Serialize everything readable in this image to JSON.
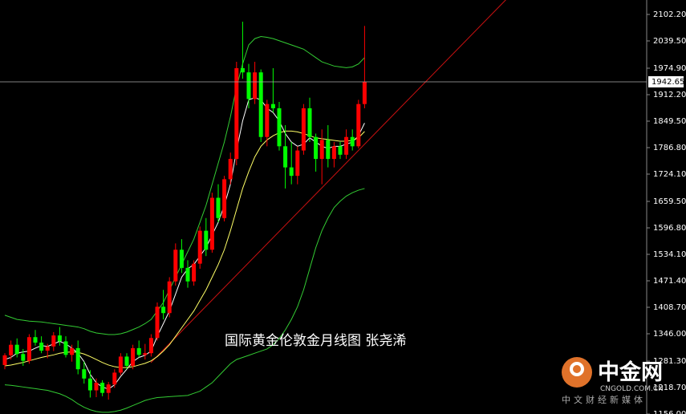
{
  "chart_data": {
    "type": "candlestick",
    "annotation": "国际黄金伦敦金月线图  张尧浠",
    "logo": {
      "name": "中金网",
      "site": "CNGOLD.COM.CN",
      "slogan": "中文财经新媒体"
    },
    "up_color": "#ff0000",
    "down_color": "#00ff00",
    "open": [
      1272,
      1295,
      1320,
      1298,
      1282,
      1338,
      1325,
      1306,
      1316,
      1342,
      1328,
      1296,
      1312,
      1262,
      1240,
      1212,
      1230,
      1206,
      1226,
      1254,
      1292,
      1270,
      1312,
      1296,
      1300,
      1336,
      1410,
      1395,
      1470,
      1545,
      1502,
      1470,
      1512,
      1590,
      1545,
      1668,
      1620,
      1712,
      1760,
      1975,
      1965,
      1902,
      1965,
      1812,
      1890,
      1880,
      1790,
      1740,
      1720,
      1780,
      1880,
      1812,
      1760,
      1805,
      1760,
      1790,
      1770,
      1812,
      1790,
      1890
    ],
    "high": [
      1300,
      1330,
      1335,
      1310,
      1345,
      1355,
      1340,
      1322,
      1350,
      1362,
      1340,
      1320,
      1330,
      1280,
      1260,
      1240,
      1236,
      1232,
      1262,
      1300,
      1300,
      1320,
      1330,
      1322,
      1345,
      1420,
      1450,
      1480,
      1560,
      1570,
      1520,
      1520,
      1600,
      1620,
      1680,
      1700,
      1720,
      1775,
      1990,
      2085,
      1985,
      1990,
      1972,
      1900,
      1975,
      1895,
      1840,
      1800,
      1790,
      1890,
      1905,
      1820,
      1830,
      1840,
      1800,
      1800,
      1830,
      1830,
      1900,
      2075
    ],
    "low": [
      1262,
      1285,
      1290,
      1270,
      1275,
      1318,
      1300,
      1288,
      1305,
      1318,
      1290,
      1280,
      1250,
      1228,
      1195,
      1196,
      1198,
      1190,
      1218,
      1248,
      1262,
      1262,
      1290,
      1285,
      1292,
      1330,
      1380,
      1385,
      1460,
      1490,
      1455,
      1460,
      1500,
      1530,
      1538,
      1610,
      1612,
      1700,
      1745,
      1950,
      1880,
      1890,
      1800,
      1790,
      1870,
      1780,
      1690,
      1700,
      1700,
      1770,
      1800,
      1730,
      1700,
      1740,
      1740,
      1760,
      1760,
      1780,
      1785,
      1880
    ],
    "close": [
      1295,
      1320,
      1298,
      1282,
      1338,
      1325,
      1306,
      1316,
      1342,
      1328,
      1296,
      1312,
      1262,
      1240,
      1212,
      1230,
      1206,
      1226,
      1254,
      1292,
      1270,
      1312,
      1296,
      1300,
      1336,
      1410,
      1395,
      1470,
      1545,
      1502,
      1470,
      1512,
      1590,
      1545,
      1668,
      1620,
      1712,
      1760,
      1975,
      1965,
      1902,
      1965,
      1812,
      1890,
      1880,
      1790,
      1740,
      1720,
      1780,
      1880,
      1812,
      1760,
      1805,
      1760,
      1790,
      1770,
      1812,
      1790,
      1890,
      1942.65
    ],
    "overlays": [
      {
        "color": "#33cc33",
        "values": [
          1390,
          1385,
          1380,
          1378,
          1376,
          1375,
          1374,
          1372,
          1370,
          1368,
          1366,
          1364,
          1362,
          1358,
          1352,
          1348,
          1346,
          1344,
          1344,
          1346,
          1350,
          1356,
          1362,
          1370,
          1380,
          1400,
          1420,
          1450,
          1480,
          1510,
          1540,
          1570,
          1610,
          1650,
          1700,
          1750,
          1800,
          1860,
          1930,
          1985,
          2030,
          2045,
          2050,
          2048,
          2045,
          2040,
          2035,
          2030,
          2025,
          2020,
          2010,
          2000,
          1990,
          1985,
          1980,
          1978,
          1976,
          1978,
          1985,
          2000
        ]
      },
      {
        "color": "#33cc33",
        "values": [
          1225,
          1224,
          1222,
          1220,
          1218,
          1216,
          1214,
          1212,
          1208,
          1204,
          1198,
          1190,
          1180,
          1172,
          1166,
          1162,
          1160,
          1160,
          1162,
          1165,
          1170,
          1176,
          1182,
          1188,
          1192,
          1195,
          1196,
          1197,
          1198,
          1199,
          1200,
          1205,
          1210,
          1220,
          1230,
          1245,
          1260,
          1275,
          1285,
          1290,
          1295,
          1300,
          1305,
          1310,
          1320,
          1335,
          1355,
          1380,
          1410,
          1450,
          1500,
          1550,
          1590,
          1620,
          1645,
          1660,
          1672,
          1680,
          1686,
          1690
        ]
      },
      {
        "color": "#ffffff",
        "values": [
          1285,
          1290,
          1300,
          1303,
          1305,
          1312,
          1318,
          1316,
          1322,
          1328,
          1322,
          1312,
          1300,
          1280,
          1250,
          1230,
          1220,
          1215,
          1225,
          1245,
          1262,
          1280,
          1290,
          1295,
          1305,
          1340,
          1370,
          1400,
          1440,
          1480,
          1500,
          1510,
          1530,
          1550,
          1580,
          1610,
          1650,
          1700,
          1780,
          1850,
          1900,
          1905,
          1900,
          1880,
          1870,
          1850,
          1820,
          1800,
          1790,
          1795,
          1810,
          1800,
          1790,
          1785,
          1790,
          1790,
          1795,
          1800,
          1815,
          1845
        ]
      },
      {
        "color": "#ffff66",
        "values": [
          1270,
          1272,
          1275,
          1278,
          1282,
          1286,
          1290,
          1293,
          1296,
          1300,
          1302,
          1303,
          1302,
          1298,
          1292,
          1285,
          1278,
          1272,
          1268,
          1266,
          1266,
          1268,
          1272,
          1276,
          1282,
          1292,
          1305,
          1320,
          1340,
          1360,
          1380,
          1400,
          1425,
          1450,
          1480,
          1510,
          1545,
          1590,
          1640,
          1690,
          1730,
          1765,
          1790,
          1805,
          1815,
          1822,
          1826,
          1826,
          1824,
          1820,
          1815,
          1810,
          1808,
          1806,
          1804,
          1802,
          1802,
          1804,
          1810,
          1825
        ]
      }
    ],
    "current_price": 1942.65,
    "ylim": [
      1156,
      2136.4
    ],
    "yticks": [
      {
        "value": 2102.2,
        "label": "2102.20"
      },
      {
        "value": 2039.5,
        "label": "2039.50"
      },
      {
        "value": 1974.9,
        "label": "1974.90"
      },
      {
        "value": 1912.2,
        "label": "1912.20"
      },
      {
        "value": 1849.5,
        "label": "1849.50"
      },
      {
        "value": 1786.8,
        "label": "1786.80"
      },
      {
        "value": 1724.1,
        "label": "1724.10"
      },
      {
        "value": 1659.5,
        "label": "1659.50"
      },
      {
        "value": 1596.8,
        "label": "1596.80"
      },
      {
        "value": 1534.1,
        "label": "1534.10"
      },
      {
        "value": 1471.4,
        "label": "1471.40"
      },
      {
        "value": 1408.7,
        "label": "1408.70"
      },
      {
        "value": 1346,
        "label": "1346.00"
      },
      {
        "value": 1281.3,
        "label": "1281.30"
      },
      {
        "value": 1218.7,
        "label": "1218.70"
      },
      {
        "value": 1156,
        "label": "1156.00"
      }
    ]
  }
}
